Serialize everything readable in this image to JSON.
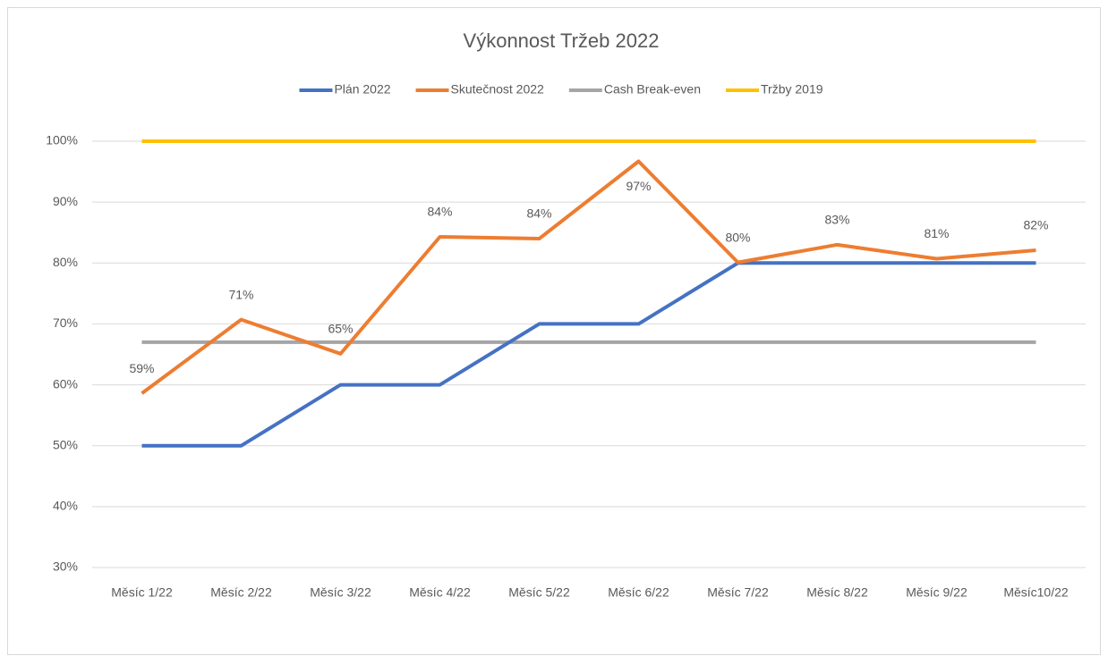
{
  "chart_data": {
    "type": "line",
    "title": "Výkonnost Tržeb 2022",
    "categories": [
      "Měsíc 1/22",
      "Měsíc 2/22",
      "Měsíc 3/22",
      "Měsíc 4/22",
      "Měsíc 5/22",
      "Měsíc 6/22",
      "Měsíc 7/22",
      "Měsíc 8/22",
      "Měsíc 9/22",
      "Měsíc10/22"
    ],
    "series": [
      {
        "name": "Plán 2022",
        "color": "#4472c4",
        "values": [
          50,
          50,
          60,
          60,
          70,
          70,
          80,
          80,
          80,
          80
        ]
      },
      {
        "name": "Skutečnost 2022",
        "color": "#ed7d31",
        "values": [
          58.6,
          70.7,
          65.1,
          84.3,
          84.0,
          96.7,
          80.1,
          83.0,
          80.7,
          82.1
        ],
        "value_labels": [
          "59%",
          "71%",
          "65%",
          "84%",
          "84%",
          "97%",
          "80%",
          "83%",
          "81%",
          "82%"
        ]
      },
      {
        "name": "Cash Break-even",
        "color": "#a5a5a5",
        "values": [
          67,
          67,
          67,
          67,
          67,
          67,
          67,
          67,
          67,
          67
        ]
      },
      {
        "name": "Tržby 2019",
        "color": "#ffc000",
        "values": [
          100,
          100,
          100,
          100,
          100,
          100,
          100,
          100,
          100,
          100
        ]
      }
    ],
    "ylim": [
      30,
      100
    ],
    "yticks": [
      {
        "value": 30,
        "label": "30%"
      },
      {
        "value": 40,
        "label": "40%"
      },
      {
        "value": 50,
        "label": "50%"
      },
      {
        "value": 60,
        "label": "60%"
      },
      {
        "value": 70,
        "label": "70%"
      },
      {
        "value": 80,
        "label": "80%"
      },
      {
        "value": 90,
        "label": "90%"
      },
      {
        "value": 100,
        "label": "100%"
      }
    ],
    "grid": true,
    "legend": "top"
  }
}
